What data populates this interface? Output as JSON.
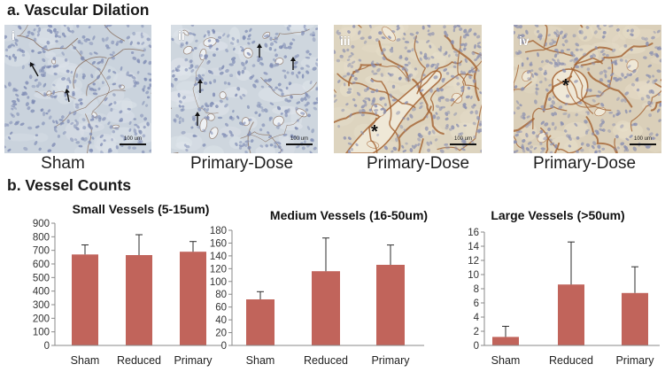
{
  "figure": {
    "panel_a_title": "a. Vascular Dilation",
    "panel_b_title": "b. Vessel Counts"
  },
  "micrographs": [
    {
      "label": "i",
      "caption": "Sham",
      "scale_bar": "100 um",
      "tint": "#cad3dd"
    },
    {
      "label": "ii",
      "caption": "Primary-Dose",
      "scale_bar": "100 um",
      "tint": "#ced6de"
    },
    {
      "label": "iii",
      "caption": "Primary-Dose",
      "scale_bar": "100 um",
      "marker": "*",
      "tint": "#ddd4bf"
    },
    {
      "label": "iv",
      "caption": "Primary-Dose",
      "scale_bar": "100 um",
      "marker": "*",
      "tint": "#dacfb9"
    }
  ],
  "icons": {
    "pointer_arrow": "arrow-icon"
  },
  "colors": {
    "bar_fill": "#c1645b",
    "error_bar": "#2e2e2e",
    "axis": "#888888",
    "stain_brown": "#a3602f",
    "nuclei": "#7f8cb4",
    "arrow": "#111111"
  },
  "chart_data": [
    {
      "type": "bar",
      "title": "Small Vessels (5-15um)",
      "categories": [
        "Sham",
        "Reduced",
        "Primary"
      ],
      "values": [
        670,
        665,
        690
      ],
      "errors": [
        70,
        150,
        75
      ],
      "ylim": [
        0,
        900
      ],
      "yticks": [
        0,
        100,
        200,
        300,
        400,
        500,
        600,
        700,
        800,
        900
      ],
      "grid": false
    },
    {
      "type": "bar",
      "title": "Medium Vessels (16-50um)",
      "categories": [
        "Sham",
        "Reduced",
        "Primary"
      ],
      "values": [
        72,
        116,
        126
      ],
      "errors": [
        12,
        52,
        31
      ],
      "ylim": [
        0,
        180
      ],
      "yticks": [
        0,
        20,
        40,
        60,
        80,
        100,
        120,
        140,
        160,
        180
      ],
      "grid": false
    },
    {
      "type": "bar",
      "title": "Large Vessels (>50um)",
      "categories": [
        "Sham",
        "Reduced",
        "Primary"
      ],
      "values": [
        1.2,
        8.6,
        7.4
      ],
      "errors": [
        1.5,
        6.0,
        3.7
      ],
      "ylim": [
        0,
        16
      ],
      "yticks": [
        0,
        2,
        4,
        6,
        8,
        10,
        12,
        14,
        16
      ],
      "grid": false
    }
  ]
}
